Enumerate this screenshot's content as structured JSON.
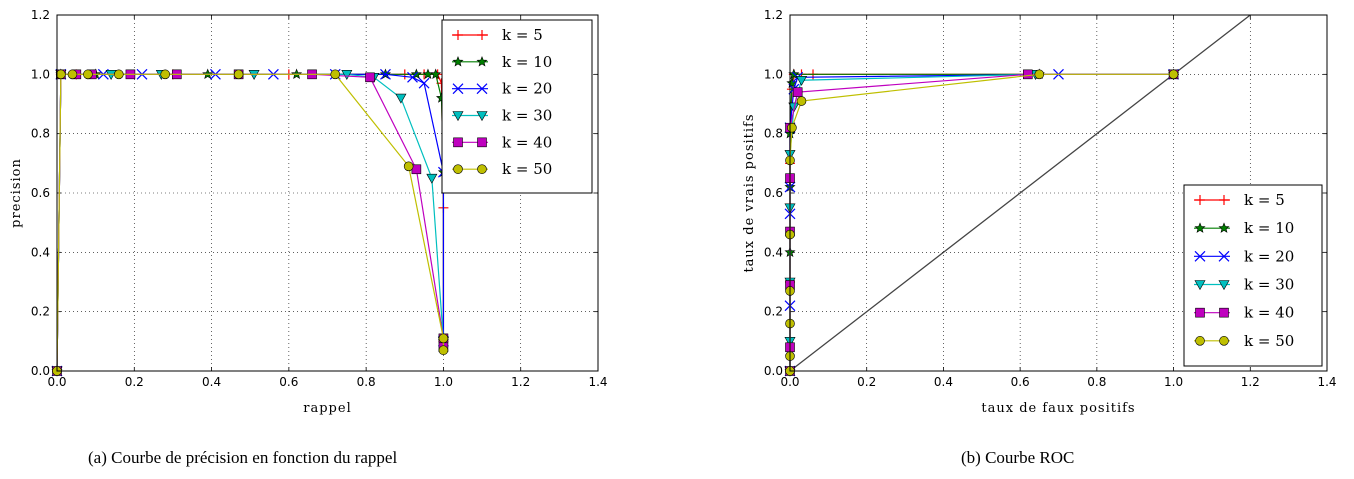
{
  "captions": {
    "a": "(a) Courbe de précision en fonction du rappel",
    "b": "(b) Courbe ROC"
  },
  "series_styles": [
    {
      "label": "k = 5",
      "color": "#ff0000",
      "marker": "plus"
    },
    {
      "label": "k = 10",
      "color": "#007f00",
      "marker": "star"
    },
    {
      "label": "k = 20",
      "color": "#0000ff",
      "marker": "x"
    },
    {
      "label": "k = 30",
      "color": "#00bfbf",
      "marker": "triangle-down"
    },
    {
      "label": "k = 40",
      "color": "#bf00bf",
      "marker": "square"
    },
    {
      "label": "k = 50",
      "color": "#bfbf00",
      "marker": "circle"
    }
  ],
  "chart_data": [
    {
      "type": "line",
      "xlabel": "rappel",
      "ylabel": "precision",
      "xlim": [
        0,
        1.4
      ],
      "ylim": [
        0,
        1.2
      ],
      "xticks": [
        "0.0",
        "0.2",
        "0.4",
        "0.6",
        "0.8",
        "1.0",
        "1.2",
        "1.4"
      ],
      "yticks": [
        "0.0",
        "0.2",
        "0.4",
        "0.6",
        "0.8",
        "1.0",
        "1.2"
      ],
      "grid": true,
      "legend": "top-right",
      "series": [
        {
          "name": "k = 5",
          "x": [
            0,
            0.01,
            0.05,
            0.3,
            0.6,
            0.9,
            0.95,
            0.985,
            0.995,
            1.0,
            1.0
          ],
          "y": [
            0,
            1.0,
            1.0,
            1.0,
            1.0,
            1.0,
            1.0,
            1.0,
            0.97,
            0.55,
            0.1
          ]
        },
        {
          "name": "k = 10",
          "x": [
            0,
            0.01,
            0.1,
            0.39,
            0.62,
            0.85,
            0.93,
            0.96,
            0.98,
            0.995,
            1.0,
            1.0
          ],
          "y": [
            0,
            1.0,
            1.0,
            1.0,
            1.0,
            1.0,
            1.0,
            1.0,
            1.0,
            0.92,
            0.67,
            0.1
          ]
        },
        {
          "name": "k = 20",
          "x": [
            0,
            0.01,
            0.12,
            0.22,
            0.41,
            0.56,
            0.72,
            0.85,
            0.92,
            0.95,
            1.0,
            1.0
          ],
          "y": [
            0,
            1.0,
            1.0,
            1.0,
            1.0,
            1.0,
            1.0,
            1.0,
            0.99,
            0.97,
            0.67,
            0.1
          ]
        },
        {
          "name": "k = 30",
          "x": [
            0,
            0.01,
            0.14,
            0.27,
            0.51,
            0.75,
            0.82,
            0.89,
            0.97,
            1.0
          ],
          "y": [
            0,
            1.0,
            1.0,
            1.0,
            1.0,
            1.0,
            0.99,
            0.92,
            0.65,
            0.1
          ]
        },
        {
          "name": "k = 40",
          "x": [
            0,
            0.01,
            0.05,
            0.09,
            0.19,
            0.31,
            0.47,
            0.66,
            0.81,
            0.93,
            1.0,
            1.0
          ],
          "y": [
            0,
            1.0,
            1.0,
            1.0,
            1.0,
            1.0,
            1.0,
            1.0,
            0.99,
            0.68,
            0.11,
            0.08
          ]
        },
        {
          "name": "k = 50",
          "x": [
            0,
            0.01,
            0.04,
            0.08,
            0.16,
            0.28,
            0.47,
            0.72,
            0.91,
            1.0,
            1.0
          ],
          "y": [
            0,
            1.0,
            1.0,
            1.0,
            1.0,
            1.0,
            1.0,
            1.0,
            0.69,
            0.11,
            0.07
          ]
        }
      ]
    },
    {
      "type": "line",
      "xlabel": "taux de faux positifs",
      "ylabel": "taux de vrais positifs",
      "xlim": [
        0,
        1.4
      ],
      "ylim": [
        0,
        1.2
      ],
      "xticks": [
        "0.0",
        "0.2",
        "0.4",
        "0.6",
        "0.8",
        "1.0",
        "1.2",
        "1.4"
      ],
      "yticks": [
        "0.0",
        "0.2",
        "0.4",
        "0.6",
        "0.8",
        "1.0",
        "1.2"
      ],
      "grid": true,
      "legend": "lower-right",
      "diagonal": {
        "x": [
          0,
          1.2
        ],
        "y": [
          0,
          1.2
        ],
        "color": "#444444"
      },
      "series": [
        {
          "name": "k = 5",
          "x": [
            0,
            0,
            0,
            0.005,
            0.01,
            0.03,
            0.06,
            1.0
          ],
          "y": [
            0,
            0.3,
            0.7,
            0.95,
            1.0,
            1.0,
            1.0,
            1.0
          ]
        },
        {
          "name": "k = 10",
          "x": [
            0,
            0,
            0,
            0,
            0.005,
            0.01,
            0.65,
            1.0
          ],
          "y": [
            0,
            0.4,
            0.62,
            0.8,
            0.97,
            1.0,
            1.0,
            1.0
          ]
        },
        {
          "name": "k = 20",
          "x": [
            0,
            0,
            0,
            0,
            0,
            0.01,
            0.02,
            0.7,
            1.0
          ],
          "y": [
            0,
            0.22,
            0.53,
            0.62,
            0.82,
            0.95,
            0.99,
            1.0,
            1.0
          ]
        },
        {
          "name": "k = 30",
          "x": [
            0,
            0,
            0,
            0,
            0,
            0.01,
            0.03,
            0.64,
            1.0
          ],
          "y": [
            0,
            0.1,
            0.3,
            0.55,
            0.73,
            0.89,
            0.98,
            1.0,
            1.0
          ]
        },
        {
          "name": "k = 40",
          "x": [
            0,
            0,
            0,
            0,
            0,
            0,
            0.02,
            0.62,
            1.0
          ],
          "y": [
            0,
            0.08,
            0.29,
            0.47,
            0.65,
            0.82,
            0.94,
            1.0,
            1.0
          ]
        },
        {
          "name": "k = 50",
          "x": [
            0,
            0,
            0,
            0,
            0,
            0,
            0.005,
            0.03,
            0.65,
            1.0
          ],
          "y": [
            0,
            0.05,
            0.16,
            0.27,
            0.46,
            0.71,
            0.82,
            0.91,
            1.0,
            1.0
          ]
        }
      ]
    }
  ]
}
